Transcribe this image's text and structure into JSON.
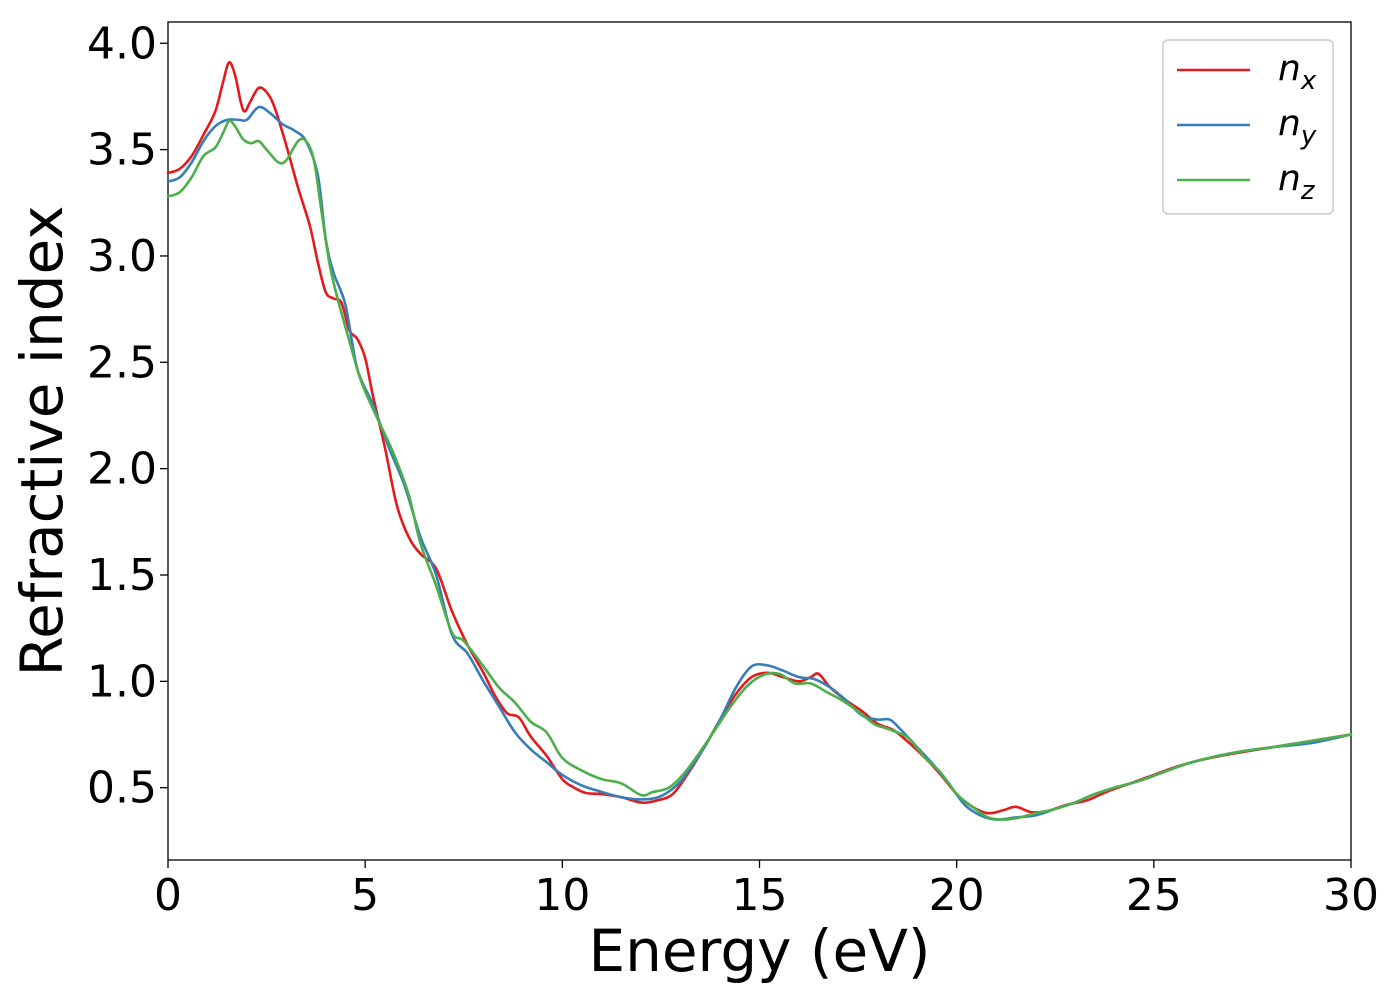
{
  "chart_data": {
    "type": "line",
    "title": "",
    "xlabel": "Energy (eV)",
    "ylabel": "Refractive index",
    "xlim": [
      0,
      30
    ],
    "ylim": [
      0.16,
      4.1
    ],
    "xticks": [
      0,
      5,
      10,
      15,
      20,
      25,
      30
    ],
    "yticks": [
      0.5,
      1.0,
      1.5,
      2.0,
      2.5,
      3.0,
      3.5,
      4.0
    ],
    "xtick_labels": [
      "0",
      "5",
      "10",
      "15",
      "20",
      "25",
      "30"
    ],
    "ytick_labels": [
      "0.5",
      "1.0",
      "1.5",
      "2.0",
      "2.5",
      "3.0",
      "3.5",
      "4.0"
    ],
    "grid": false,
    "legend_position": "top-right",
    "series": [
      {
        "name": "n",
        "subscript": "x",
        "color": "#e41a1c",
        "points": [
          [
            0,
            3.39
          ],
          [
            0.3,
            3.41
          ],
          [
            0.6,
            3.47
          ],
          [
            0.9,
            3.57
          ],
          [
            1.2,
            3.68
          ],
          [
            1.4,
            3.82
          ],
          [
            1.55,
            3.91
          ],
          [
            1.7,
            3.85
          ],
          [
            1.85,
            3.72
          ],
          [
            1.95,
            3.68
          ],
          [
            2.1,
            3.73
          ],
          [
            2.3,
            3.79
          ],
          [
            2.5,
            3.77
          ],
          [
            2.7,
            3.7
          ],
          [
            3.0,
            3.52
          ],
          [
            3.3,
            3.32
          ],
          [
            3.6,
            3.14
          ],
          [
            3.8,
            2.97
          ],
          [
            4.0,
            2.83
          ],
          [
            4.2,
            2.8
          ],
          [
            4.4,
            2.78
          ],
          [
            4.6,
            2.65
          ],
          [
            4.8,
            2.61
          ],
          [
            5.0,
            2.52
          ],
          [
            5.2,
            2.34
          ],
          [
            5.5,
            2.1
          ],
          [
            5.8,
            1.83
          ],
          [
            6.1,
            1.68
          ],
          [
            6.4,
            1.6
          ],
          [
            6.8,
            1.53
          ],
          [
            7.2,
            1.33
          ],
          [
            7.6,
            1.17
          ],
          [
            8.0,
            1.04
          ],
          [
            8.3,
            0.93
          ],
          [
            8.6,
            0.85
          ],
          [
            8.9,
            0.83
          ],
          [
            9.2,
            0.74
          ],
          [
            9.6,
            0.65
          ],
          [
            10.0,
            0.54
          ],
          [
            10.3,
            0.5
          ],
          [
            10.6,
            0.475
          ],
          [
            11.0,
            0.47
          ],
          [
            11.5,
            0.455
          ],
          [
            12.0,
            0.43
          ],
          [
            12.4,
            0.44
          ],
          [
            12.8,
            0.47
          ],
          [
            13.2,
            0.57
          ],
          [
            13.6,
            0.69
          ],
          [
            14.0,
            0.82
          ],
          [
            14.4,
            0.94
          ],
          [
            14.8,
            1.02
          ],
          [
            15.2,
            1.04
          ],
          [
            15.6,
            1.02
          ],
          [
            16.0,
            1.0
          ],
          [
            16.3,
            1.02
          ],
          [
            16.5,
            1.035
          ],
          [
            16.8,
            0.97
          ],
          [
            17.2,
            0.91
          ],
          [
            17.6,
            0.86
          ],
          [
            18.0,
            0.8
          ],
          [
            18.4,
            0.77
          ],
          [
            18.8,
            0.71
          ],
          [
            19.2,
            0.64
          ],
          [
            19.6,
            0.56
          ],
          [
            20.0,
            0.47
          ],
          [
            20.4,
            0.41
          ],
          [
            20.8,
            0.38
          ],
          [
            21.2,
            0.395
          ],
          [
            21.5,
            0.41
          ],
          [
            21.9,
            0.385
          ],
          [
            22.3,
            0.39
          ],
          [
            22.8,
            0.42
          ],
          [
            23.3,
            0.44
          ],
          [
            23.8,
            0.48
          ],
          [
            24.4,
            0.52
          ],
          [
            25.0,
            0.56
          ],
          [
            25.6,
            0.6
          ],
          [
            26.2,
            0.63
          ],
          [
            27.0,
            0.66
          ],
          [
            28.0,
            0.69
          ],
          [
            29.0,
            0.72
          ],
          [
            30.0,
            0.75
          ]
        ]
      },
      {
        "name": "n",
        "subscript": "y",
        "color": "#377eb8",
        "points": [
          [
            0,
            3.35
          ],
          [
            0.3,
            3.37
          ],
          [
            0.6,
            3.44
          ],
          [
            0.9,
            3.54
          ],
          [
            1.2,
            3.61
          ],
          [
            1.5,
            3.64
          ],
          [
            1.8,
            3.64
          ],
          [
            2.0,
            3.64
          ],
          [
            2.3,
            3.7
          ],
          [
            2.6,
            3.67
          ],
          [
            2.9,
            3.62
          ],
          [
            3.2,
            3.59
          ],
          [
            3.5,
            3.54
          ],
          [
            3.8,
            3.38
          ],
          [
            4.0,
            3.08
          ],
          [
            4.2,
            2.92
          ],
          [
            4.5,
            2.77
          ],
          [
            4.8,
            2.47
          ],
          [
            5.2,
            2.3
          ],
          [
            5.6,
            2.1
          ],
          [
            6.0,
            1.92
          ],
          [
            6.4,
            1.68
          ],
          [
            6.8,
            1.5
          ],
          [
            7.2,
            1.22
          ],
          [
            7.6,
            1.13
          ],
          [
            8.0,
            1.0
          ],
          [
            8.4,
            0.88
          ],
          [
            8.8,
            0.76
          ],
          [
            9.2,
            0.68
          ],
          [
            9.6,
            0.62
          ],
          [
            10.0,
            0.56
          ],
          [
            10.5,
            0.51
          ],
          [
            11.0,
            0.48
          ],
          [
            11.5,
            0.455
          ],
          [
            12.0,
            0.445
          ],
          [
            12.5,
            0.46
          ],
          [
            13.0,
            0.53
          ],
          [
            13.5,
            0.66
          ],
          [
            14.0,
            0.82
          ],
          [
            14.4,
            0.97
          ],
          [
            14.8,
            1.07
          ],
          [
            15.2,
            1.075
          ],
          [
            15.6,
            1.05
          ],
          [
            16.0,
            1.02
          ],
          [
            16.4,
            1.01
          ],
          [
            16.8,
            0.97
          ],
          [
            17.2,
            0.91
          ],
          [
            17.6,
            0.84
          ],
          [
            18.0,
            0.82
          ],
          [
            18.3,
            0.82
          ],
          [
            18.6,
            0.77
          ],
          [
            19.0,
            0.69
          ],
          [
            19.4,
            0.61
          ],
          [
            19.8,
            0.52
          ],
          [
            20.2,
            0.42
          ],
          [
            20.6,
            0.37
          ],
          [
            21.0,
            0.35
          ],
          [
            21.5,
            0.36
          ],
          [
            22.0,
            0.37
          ],
          [
            22.5,
            0.4
          ],
          [
            23.0,
            0.43
          ],
          [
            23.5,
            0.47
          ],
          [
            24.0,
            0.5
          ],
          [
            24.6,
            0.53
          ],
          [
            25.2,
            0.57
          ],
          [
            25.8,
            0.61
          ],
          [
            26.4,
            0.64
          ],
          [
            27.2,
            0.67
          ],
          [
            28.0,
            0.69
          ],
          [
            29.0,
            0.71
          ],
          [
            30.0,
            0.75
          ]
        ]
      },
      {
        "name": "n",
        "subscript": "z",
        "color": "#4daf4a",
        "points": [
          [
            0,
            3.28
          ],
          [
            0.3,
            3.3
          ],
          [
            0.6,
            3.37
          ],
          [
            0.9,
            3.47
          ],
          [
            1.2,
            3.51
          ],
          [
            1.4,
            3.58
          ],
          [
            1.55,
            3.635
          ],
          [
            1.7,
            3.61
          ],
          [
            1.9,
            3.55
          ],
          [
            2.1,
            3.53
          ],
          [
            2.3,
            3.54
          ],
          [
            2.5,
            3.5
          ],
          [
            2.8,
            3.44
          ],
          [
            3.0,
            3.45
          ],
          [
            3.3,
            3.54
          ],
          [
            3.5,
            3.54
          ],
          [
            3.7,
            3.45
          ],
          [
            3.9,
            3.2
          ],
          [
            4.1,
            2.96
          ],
          [
            4.3,
            2.8
          ],
          [
            4.6,
            2.6
          ],
          [
            4.9,
            2.41
          ],
          [
            5.3,
            2.24
          ],
          [
            5.7,
            2.08
          ],
          [
            6.1,
            1.88
          ],
          [
            6.4,
            1.65
          ],
          [
            6.8,
            1.45
          ],
          [
            7.2,
            1.23
          ],
          [
            7.5,
            1.19
          ],
          [
            8.0,
            1.07
          ],
          [
            8.4,
            0.97
          ],
          [
            8.8,
            0.9
          ],
          [
            9.2,
            0.81
          ],
          [
            9.6,
            0.76
          ],
          [
            10.0,
            0.64
          ],
          [
            10.5,
            0.58
          ],
          [
            11.0,
            0.54
          ],
          [
            11.5,
            0.52
          ],
          [
            12.0,
            0.465
          ],
          [
            12.3,
            0.48
          ],
          [
            12.7,
            0.5
          ],
          [
            13.1,
            0.57
          ],
          [
            13.5,
            0.67
          ],
          [
            13.9,
            0.78
          ],
          [
            14.3,
            0.89
          ],
          [
            14.7,
            0.98
          ],
          [
            15.1,
            1.03
          ],
          [
            15.5,
            1.035
          ],
          [
            15.9,
            0.99
          ],
          [
            16.3,
            0.99
          ],
          [
            16.7,
            0.95
          ],
          [
            17.1,
            0.91
          ],
          [
            17.5,
            0.86
          ],
          [
            17.9,
            0.8
          ],
          [
            18.2,
            0.78
          ],
          [
            18.5,
            0.76
          ],
          [
            18.8,
            0.73
          ],
          [
            19.2,
            0.64
          ],
          [
            19.6,
            0.57
          ],
          [
            20.0,
            0.47
          ],
          [
            20.4,
            0.41
          ],
          [
            20.8,
            0.36
          ],
          [
            21.2,
            0.35
          ],
          [
            21.6,
            0.36
          ],
          [
            22.0,
            0.38
          ],
          [
            22.5,
            0.4
          ],
          [
            23.0,
            0.43
          ],
          [
            23.5,
            0.47
          ],
          [
            24.0,
            0.5
          ],
          [
            24.6,
            0.53
          ],
          [
            25.2,
            0.57
          ],
          [
            25.8,
            0.61
          ],
          [
            26.4,
            0.64
          ],
          [
            27.2,
            0.67
          ],
          [
            28.0,
            0.69
          ],
          [
            29.0,
            0.72
          ],
          [
            30.0,
            0.75
          ]
        ]
      }
    ]
  }
}
